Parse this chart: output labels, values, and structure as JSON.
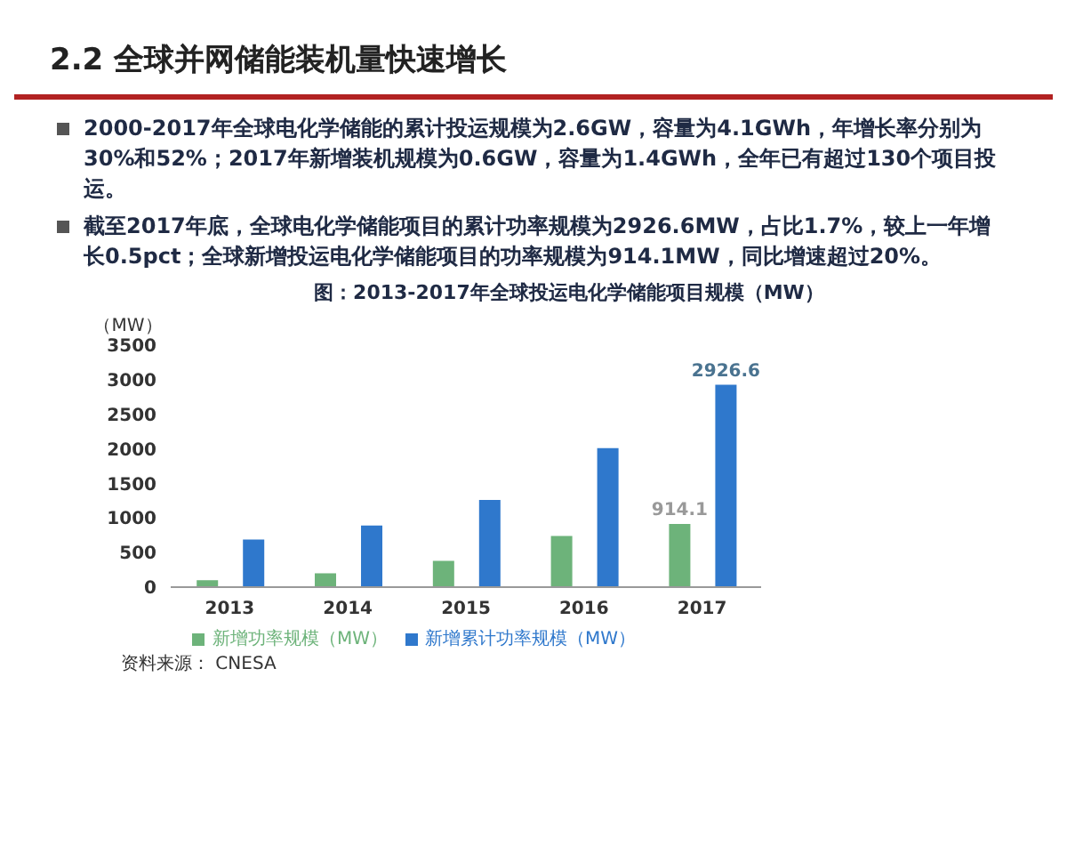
{
  "chart_data": {
    "type": "bar",
    "title": "2.2 全球并网储能装机量快速增长",
    "subtitle": "图：2013-2017年全球投运电化学储能项目规模（MW）",
    "ylabel": "（MW）",
    "annotations": [
      "2000-2017年全球电化学储能的累计投运规模为2.6GW，容量为4.1GWh，年增长率分别为30%和52%；2017年新增装机规模为0.6GW，容量为1.4GWh，全年已有超过130个项目投运。",
      "截至2017年底，全球电化学储能项目的累计功率规模为2926.6MW，占比1.7%，较上一年增长0.5pct；全球新增投运电化学储能项目的功率规模为914.1MW，同比增速超过20%。",
      "资料来源： CNESA"
    ],
    "categories": [
      "2013",
      "2014",
      "2015",
      "2016",
      "2017"
    ],
    "series": [
      {
        "name": "新增功率规模（MW）",
        "color": "#6db37a",
        "values": [
          100,
          200,
          380,
          740,
          914.1
        ],
        "value_labels": [
          null,
          null,
          null,
          null,
          "914.1"
        ]
      },
      {
        "name": "新增累计功率规模（MW）",
        "color": "#2f78cc",
        "values": [
          690,
          890,
          1260,
          2010,
          2926.6
        ],
        "value_labels": [
          null,
          null,
          null,
          null,
          "2926.6"
        ]
      }
    ],
    "ylim": [
      0,
      3500
    ],
    "yticks": [
      0,
      500,
      1000,
      1500,
      2000,
      2500,
      3000,
      3500
    ],
    "legend": "bottom"
  }
}
